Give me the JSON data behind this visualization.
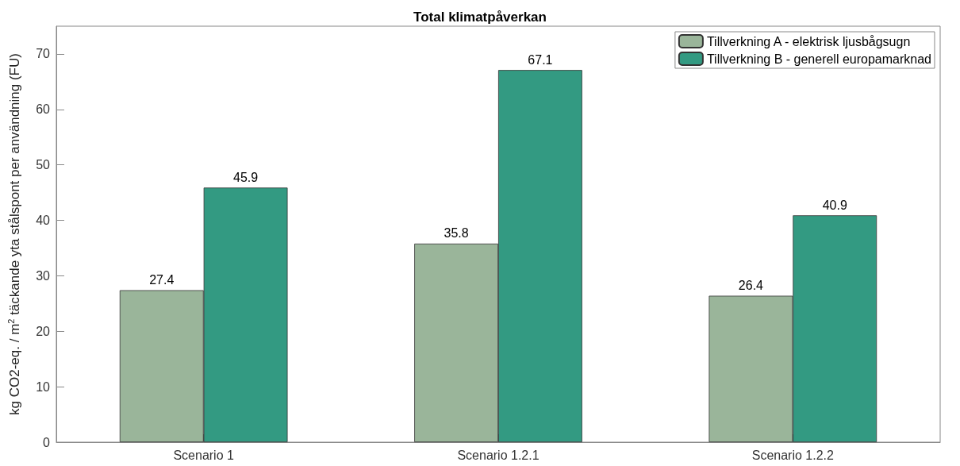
{
  "chart_data": {
    "type": "bar",
    "title": "Total klimatpåverkan",
    "ylabel": "kg CO2-eq. / m$^{2}$ täckande yta stålspont per användning (FU)",
    "categories": [
      "Scenario 1",
      "Scenario 1.2.1",
      "Scenario 1.2.2"
    ],
    "series": [
      {
        "name": "Tillverkning A - elektrisk ljusbågsugn",
        "color": "#9ab59a",
        "values": [
          27.4,
          35.8,
          26.4
        ]
      },
      {
        "name": "Tillverkning B - generell europamarknad",
        "color": "#339a82",
        "values": [
          45.9,
          67.1,
          40.9
        ]
      }
    ],
    "ylim": [
      0,
      75
    ],
    "yticks": [
      0,
      10,
      20,
      30,
      40,
      50,
      60,
      70
    ],
    "data_labels": true,
    "grid": false,
    "legend": "top right"
  }
}
